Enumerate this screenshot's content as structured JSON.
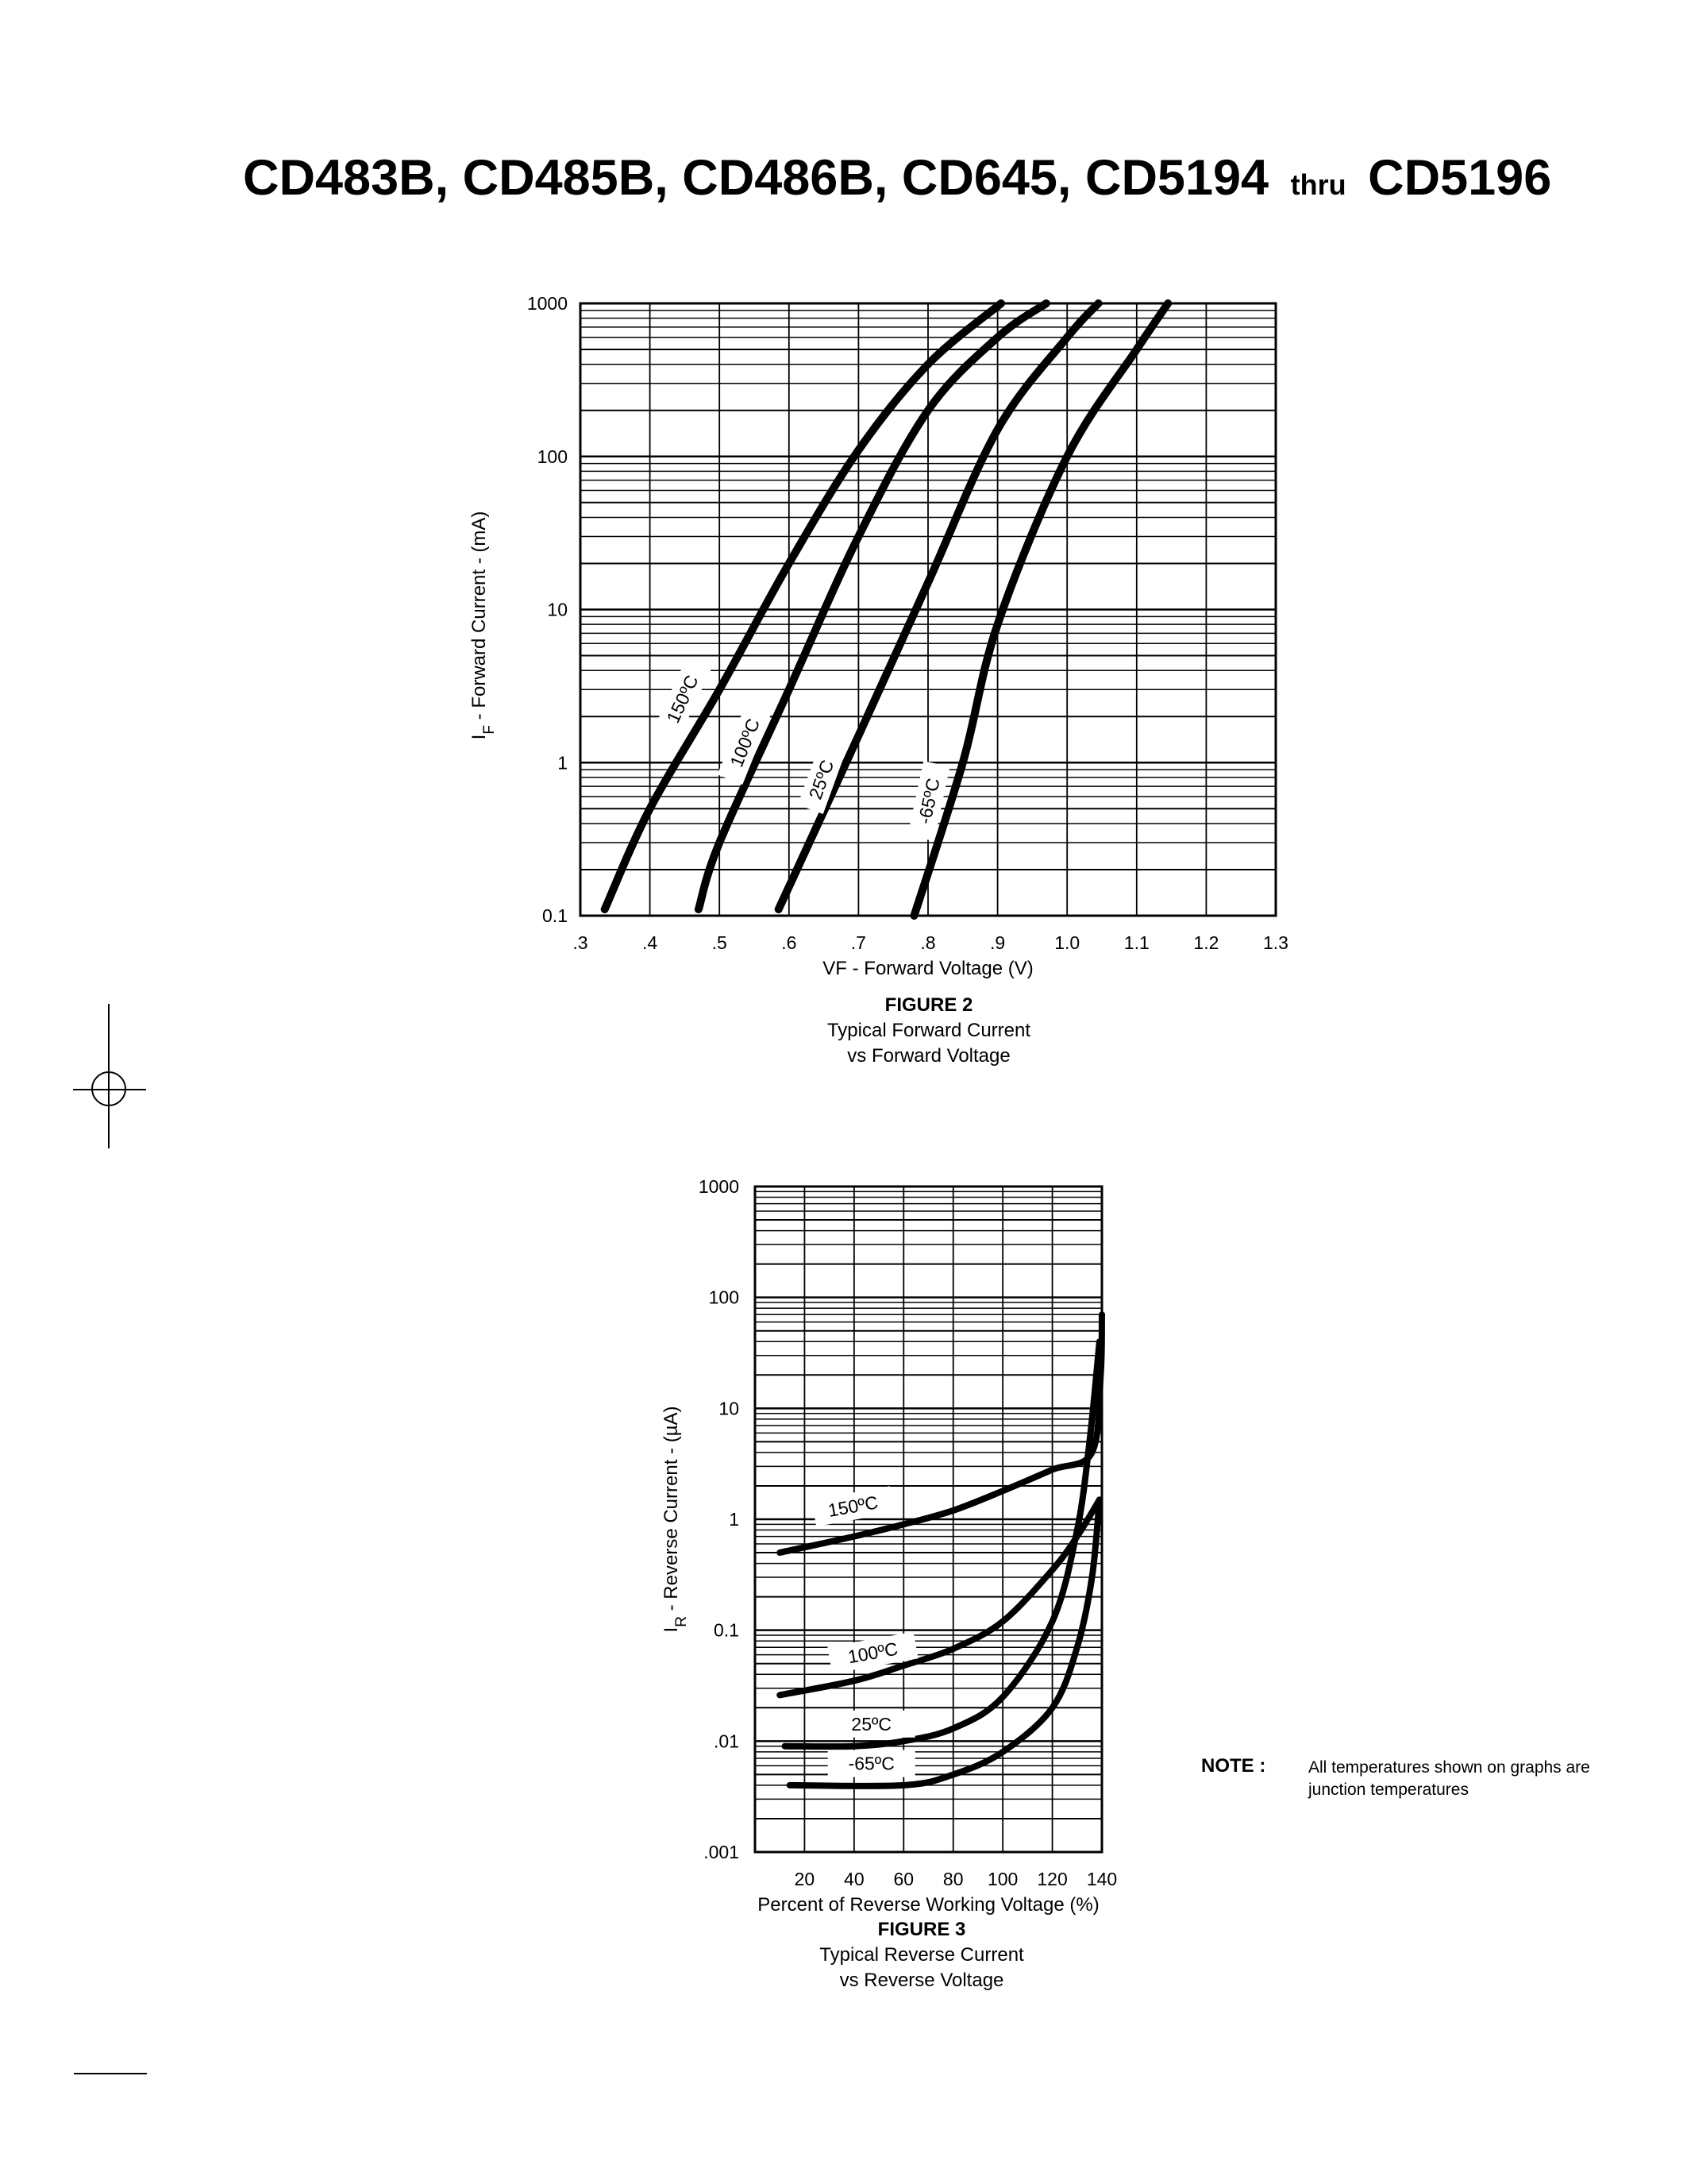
{
  "header": {
    "title_part1": "CD483B, CD485B, CD486B, CD645, CD5194",
    "title_thru": "thru",
    "title_part2": "CD5196"
  },
  "figure2": {
    "label": "FIGURE 2",
    "caption_line1": "Typical Forward Current",
    "caption_line2": "vs Forward Voltage"
  },
  "figure3": {
    "label": "FIGURE 3",
    "caption_line1": "Typical Reverse Current",
    "caption_line2": "vs Reverse Voltage"
  },
  "note": {
    "label": "NOTE :",
    "text": "All temperatures shown on graphs are junction temperatures"
  },
  "chart_data": [
    {
      "type": "line",
      "title": "FIGURE 2 — Typical Forward Current vs Forward Voltage",
      "xlabel": "VF - Forward Voltage (V)",
      "ylabel": "IF - Forward Current - (mA)",
      "xscale": "linear",
      "yscale": "log",
      "xlim": [
        0.3,
        1.3
      ],
      "ylim": [
        0.1,
        1000
      ],
      "x_ticks": [
        ".3",
        ".4",
        ".5",
        ".6",
        ".7",
        ".8",
        ".9",
        "1.0",
        "1.1",
        "1.2",
        "1.3"
      ],
      "y_ticks": [
        "0.1",
        "1",
        "10",
        "100",
        "1000"
      ],
      "grid": true,
      "series": [
        {
          "name": "150ºC",
          "x": [
            0.335,
            0.4,
            0.5,
            0.6,
            0.7,
            0.8,
            0.905
          ],
          "y": [
            0.11,
            0.5,
            3,
            20,
            110,
            400,
            1000
          ]
        },
        {
          "name": "100ºC",
          "x": [
            0.47,
            0.5,
            0.6,
            0.7,
            0.8,
            0.9,
            0.97
          ],
          "y": [
            0.11,
            0.3,
            3,
            30,
            200,
            600,
            1000
          ]
        },
        {
          "name": "25ºC",
          "x": [
            0.585,
            0.7,
            0.8,
            0.9,
            1.0,
            1.045
          ],
          "y": [
            0.11,
            1.5,
            15,
            150,
            600,
            1000
          ]
        },
        {
          "name": "-65ºC",
          "x": [
            0.78,
            0.85,
            0.9,
            1.0,
            1.1,
            1.145
          ],
          "y": [
            0.1,
            1,
            8,
            100,
            500,
            1000
          ]
        }
      ]
    },
    {
      "type": "line",
      "title": "FIGURE 3 — Typical Reverse Current vs Reverse Voltage",
      "xlabel": "Percent of Reverse Working Voltage (%)",
      "ylabel": "IR - Reverse Current - (µA)",
      "xscale": "linear",
      "yscale": "log",
      "xlim": [
        0,
        140
      ],
      "ylim": [
        0.001,
        1000
      ],
      "x_ticks": [
        "20",
        "40",
        "60",
        "80",
        "100",
        "120",
        "140"
      ],
      "y_ticks": [
        ".001",
        ".01",
        "0.1",
        "1",
        "10",
        "100",
        "1000"
      ],
      "grid": true,
      "series": [
        {
          "name": "150ºC",
          "x": [
            10,
            40,
            60,
            80,
            100,
            120,
            136,
            139.5,
            140
          ],
          "y": [
            0.5,
            0.7,
            0.9,
            1.2,
            1.8,
            2.8,
            4,
            20,
            70
          ]
        },
        {
          "name": "100ºC",
          "x": [
            10,
            40,
            60,
            80,
            100,
            120,
            130,
            139
          ],
          "y": [
            0.026,
            0.035,
            0.048,
            0.068,
            0.12,
            0.35,
            0.7,
            1.5
          ]
        },
        {
          "name": "25ºC",
          "x": [
            12,
            40,
            60,
            80,
            100,
            120,
            130,
            135,
            139
          ],
          "y": [
            0.009,
            0.009,
            0.01,
            0.013,
            0.025,
            0.12,
            0.8,
            5,
            40
          ]
        },
        {
          "name": "-65ºC",
          "x": [
            14,
            60,
            80,
            100,
            120,
            130,
            136,
            139
          ],
          "y": [
            0.004,
            0.004,
            0.005,
            0.008,
            0.02,
            0.07,
            0.3,
            1.5
          ]
        }
      ]
    }
  ]
}
